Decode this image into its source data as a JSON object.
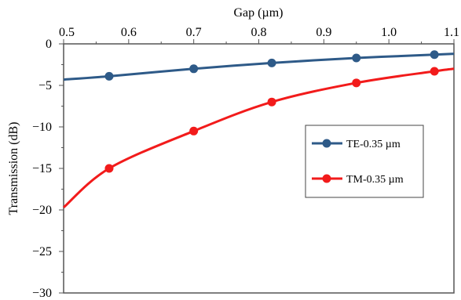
{
  "chart_data": {
    "type": "line",
    "title": "",
    "xlabel": "Gap (µm)",
    "ylabel": "Transmission (dB)",
    "xlim": [
      0.5,
      1.1
    ],
    "ylim": [
      -30,
      0
    ],
    "xticks": [
      "0.5",
      "0.6",
      "0.7",
      "0.8",
      "0.9",
      "1.0",
      "1.1"
    ],
    "yticks": [
      "0",
      "−5",
      "−10",
      "−15",
      "−20",
      "−25",
      "−30"
    ],
    "x_axis_position": "top",
    "grid": false,
    "legend_position": "right",
    "series": [
      {
        "name": "TE-0.35 µm",
        "color": "#2e5a88",
        "marker": "circle",
        "x": [
          0.5,
          0.57,
          0.7,
          0.82,
          0.95,
          1.07,
          1.1
        ],
        "values": [
          -4.3,
          -3.9,
          -3.0,
          -2.3,
          -1.7,
          -1.3,
          -1.2
        ],
        "marker_x": [
          0.57,
          0.7,
          0.82,
          0.95,
          1.07
        ],
        "marker_values": [
          -3.9,
          -3.0,
          -2.3,
          -1.7,
          -1.3
        ]
      },
      {
        "name": "TM-0.35 µm",
        "color": "#f21b1b",
        "marker": "circle",
        "x": [
          0.5,
          0.57,
          0.7,
          0.82,
          0.95,
          1.07,
          1.1
        ],
        "values": [
          -19.7,
          -15.0,
          -10.5,
          -7.0,
          -4.7,
          -3.3,
          -3.0
        ],
        "marker_x": [
          0.57,
          0.7,
          0.82,
          0.95,
          1.07
        ],
        "marker_values": [
          -15.0,
          -10.5,
          -7.0,
          -4.7,
          -3.3
        ]
      }
    ]
  }
}
